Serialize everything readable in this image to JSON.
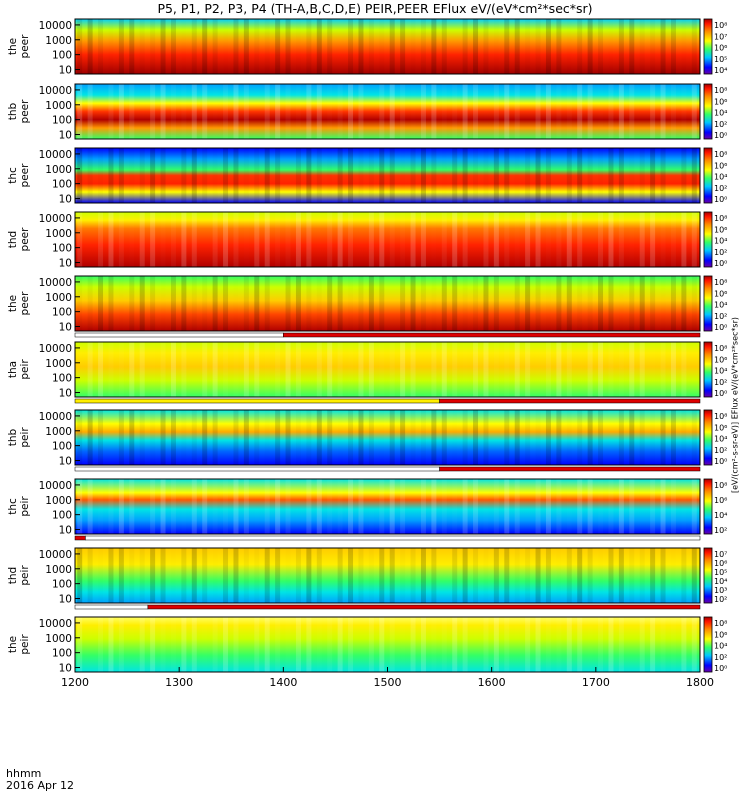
{
  "title": "P5, P1, P2, P3, P4 (TH-A,B,C,D,E) PEIR,PEER EFlux eV/(eV*cm²*sec*sr)",
  "footer": {
    "format": "hhmm",
    "date": "2016 Apr 12"
  },
  "colorbar_side_label": "[eV/(cm²-s-sr-eV)]  EFlux eV/(eV*cm²*sec*sr)",
  "chart_data": {
    "type": "heatmap",
    "x_axis": {
      "range": [
        1200,
        1800
      ],
      "ticks": [
        1200,
        1300,
        1400,
        1500,
        1600,
        1700,
        1800
      ],
      "label": "hhmm"
    },
    "y_axis": {
      "scale": "log",
      "range": [
        5,
        25000
      ],
      "unit": "eV"
    },
    "colormap": [
      "#6a00a8",
      "#0000ff",
      "#00a0ff",
      "#00e5e5",
      "#33ff66",
      "#ccff00",
      "#ffff00",
      "#ff9900",
      "#ff2200",
      "#b00000"
    ],
    "panels": [
      {
        "label": [
          "the",
          "peer"
        ],
        "y_ticks": [
          "10000",
          "1000",
          "100",
          "10"
        ],
        "cb_ticks": [
          "10⁸",
          "10⁷",
          "10⁶",
          "10⁵",
          "10⁴"
        ],
        "quality_bar": []
      },
      {
        "label": [
          "thb",
          "peer"
        ],
        "y_ticks": [
          "10000",
          "1000",
          "100",
          "10"
        ],
        "cb_ticks": [
          "10⁸",
          "10⁶",
          "10⁴",
          "10²",
          "10⁰"
        ],
        "quality_bar": []
      },
      {
        "label": [
          "thc",
          "peer"
        ],
        "y_ticks": [
          "10000",
          "1000",
          "100",
          "10"
        ],
        "cb_ticks": [
          "10⁸",
          "10⁶",
          "10⁴",
          "10²",
          "10⁰"
        ],
        "quality_bar": []
      },
      {
        "label": [
          "thd",
          "peer"
        ],
        "y_ticks": [
          "10000",
          "1000",
          "100",
          "10"
        ],
        "cb_ticks": [
          "10⁸",
          "10⁶",
          "10⁴",
          "10²",
          "10⁰"
        ],
        "quality_bar": []
      },
      {
        "label": [
          "the",
          "peer"
        ],
        "y_ticks": [
          "10000",
          "1000",
          "100",
          "10"
        ],
        "cb_ticks": [
          "10⁸",
          "10⁶",
          "10⁴",
          "10²",
          "10⁰"
        ],
        "quality_bar": [
          {
            "from": 1200,
            "to": 1400,
            "color": "#ffffff"
          },
          {
            "from": 1400,
            "to": 1800,
            "color": "#dd0000"
          }
        ]
      },
      {
        "label": [
          "tha",
          "peir"
        ],
        "y_ticks": [
          "10000",
          "1000",
          "100",
          "10"
        ],
        "cb_ticks": [
          "10⁸",
          "10⁶",
          "10⁴",
          "10²",
          "10⁰"
        ],
        "quality_bar": [
          {
            "from": 1200,
            "to": 1550,
            "color": "#ffee00"
          },
          {
            "from": 1550,
            "to": 1800,
            "color": "#dd0000"
          }
        ]
      },
      {
        "label": [
          "thb",
          "peir"
        ],
        "y_ticks": [
          "10000",
          "1000",
          "100",
          "10"
        ],
        "cb_ticks": [
          "10⁸",
          "10⁶",
          "10⁴",
          "10²",
          "10⁰"
        ],
        "quality_bar": [
          {
            "from": 1200,
            "to": 1550,
            "color": "#ffffff"
          },
          {
            "from": 1550,
            "to": 1800,
            "color": "#dd0000"
          }
        ]
      },
      {
        "label": [
          "thc",
          "peir"
        ],
        "y_ticks": [
          "10000",
          "1000",
          "100",
          "10"
        ],
        "cb_ticks": [
          "10⁸",
          "10⁶",
          "10⁴",
          "10²"
        ],
        "quality_bar": [
          {
            "from": 1200,
            "to": 1210,
            "color": "#dd0000"
          },
          {
            "from": 1210,
            "to": 1800,
            "color": "#ffffff"
          }
        ]
      },
      {
        "label": [
          "thd",
          "peir"
        ],
        "y_ticks": [
          "10000",
          "1000",
          "100",
          "10"
        ],
        "cb_ticks": [
          "10⁷",
          "10⁶",
          "10⁵",
          "10⁴",
          "10³",
          "10²"
        ],
        "quality_bar": [
          {
            "from": 1200,
            "to": 1270,
            "color": "#ffffff"
          },
          {
            "from": 1270,
            "to": 1800,
            "color": "#dd0000"
          }
        ]
      },
      {
        "label": [
          "the",
          "peir"
        ],
        "y_ticks": [
          "10000",
          "1000",
          "100",
          "10"
        ],
        "cb_ticks": [
          "10⁸",
          "10⁶",
          "10⁴",
          "10²",
          "10⁰"
        ],
        "quality_bar": []
      }
    ]
  }
}
